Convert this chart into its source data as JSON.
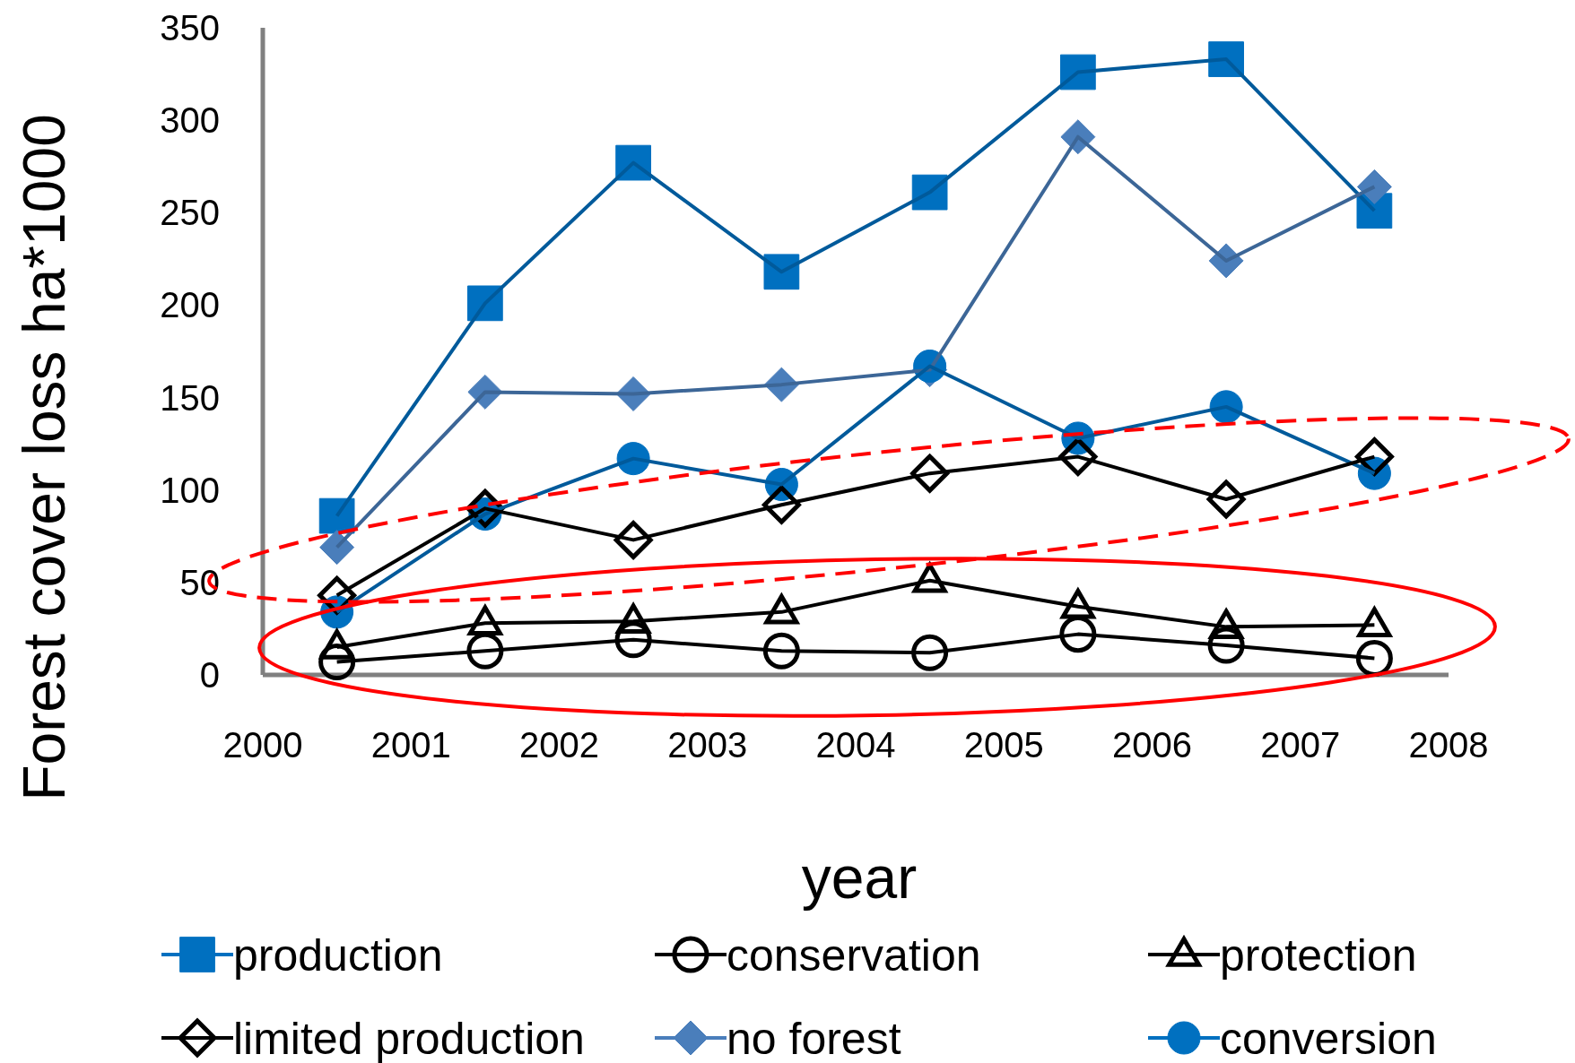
{
  "chart_data": {
    "type": "line",
    "xlabel": "year",
    "ylabel": "Forest cover loss ha*1000",
    "x": [
      2000.5,
      2001.5,
      2002.5,
      2003.5,
      2004.5,
      2005.5,
      2006.5,
      2007.5
    ],
    "xlim": [
      2000,
      2008
    ],
    "xticks": [
      2000,
      2001,
      2002,
      2003,
      2004,
      2005,
      2006,
      2007,
      2008
    ],
    "ylim": [
      0,
      350
    ],
    "yticks": [
      0,
      50,
      100,
      150,
      200,
      250,
      300,
      350
    ],
    "grid": false,
    "legend": "bottom",
    "series": [
      {
        "name": "production",
        "color": "#0070c0",
        "marker": "square",
        "values": [
          86,
          201,
          277,
          218,
          261,
          326,
          333,
          251
        ]
      },
      {
        "name": "conservation",
        "color": "#000000",
        "marker": "circle",
        "values": [
          7,
          13,
          19,
          13,
          12,
          22,
          16,
          9
        ]
      },
      {
        "name": "protection",
        "color": "#000000",
        "marker": "triangle",
        "values": [
          15,
          28,
          29,
          34,
          51,
          37,
          26,
          27
        ]
      },
      {
        "name": "limited production",
        "color": "#000000",
        "marker": "diamond",
        "values": [
          43,
          90,
          73,
          92,
          109,
          118,
          95,
          118
        ]
      },
      {
        "name": "no forest",
        "color": "#4a7ebb",
        "marker": "diamond",
        "values": [
          69,
          153,
          152,
          157,
          165,
          291,
          224,
          264
        ]
      },
      {
        "name": "conversion",
        "color": "#0070c0",
        "marker": "circle",
        "values": [
          34,
          87,
          117,
          103,
          167,
          128,
          145,
          109
        ]
      }
    ]
  }
}
